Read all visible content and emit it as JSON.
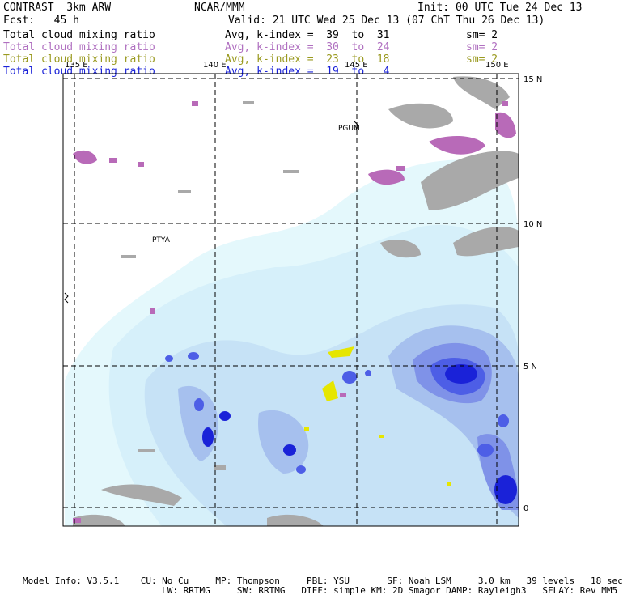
{
  "header": {
    "title": "CONTRAST  3km ARW",
    "center": "NCAR/MMM",
    "init": "Init: 00 UTC Tue 24 Dec 13",
    "fcst": "Fcst:   45 h",
    "valid": "Valid: 21 UTC Wed 25 Dec 13 (07 ChT Thu 26 Dec 13)"
  },
  "fields": [
    {
      "name": "Total cloud mixing ratio",
      "range": "Avg, k-index =  39  to  31",
      "sm": "sm= 2",
      "color": "#000000"
    },
    {
      "name": "Total cloud mixing ratio",
      "range": "Avg, k-index =  30  to  24",
      "sm": "sm= 2",
      "color": "#b070c0"
    },
    {
      "name": "Total cloud mixing ratio",
      "range": "Avg, k-index =  23  to  18",
      "sm": "sm= 2",
      "color": "#9a9a20"
    },
    {
      "name": "Total cloud mixing ratio",
      "range": "Avg, k-index =  19  to   4",
      "sm": "",
      "color": "#1a22d8"
    }
  ],
  "map": {
    "lon_labels": [
      "135 E",
      "140 E",
      "145 E",
      "150 E"
    ],
    "lat_labels": [
      "15 N",
      "10 N",
      "5 N",
      "0"
    ],
    "stations": [
      "PGUM",
      "PTYA"
    ],
    "colors": {
      "high_cloud": "#a9a9a9",
      "mid_cloud": "#b86ab8",
      "low_cloud": "#e6e600",
      "deep_1": "#e4f8fc",
      "deep_2": "#c6e2f6",
      "deep_3": "#a6c0ee",
      "deep_4": "#7f92e8",
      "deep_5": "#4d5ee6",
      "deep_6": "#1a22d8"
    }
  },
  "footer": {
    "line1": "Model Info: V3.5.1    CU: No Cu     MP: Thompson     PBL: YSU       SF: Noah LSM     3.0 km   39 levels   18 sec",
    "line2": "                          LW: RRTMG     SW: RRTMG   DIFF: simple KM: 2D Smagor DAMP: Rayleigh3   SFLAY: Rev MM5"
  }
}
